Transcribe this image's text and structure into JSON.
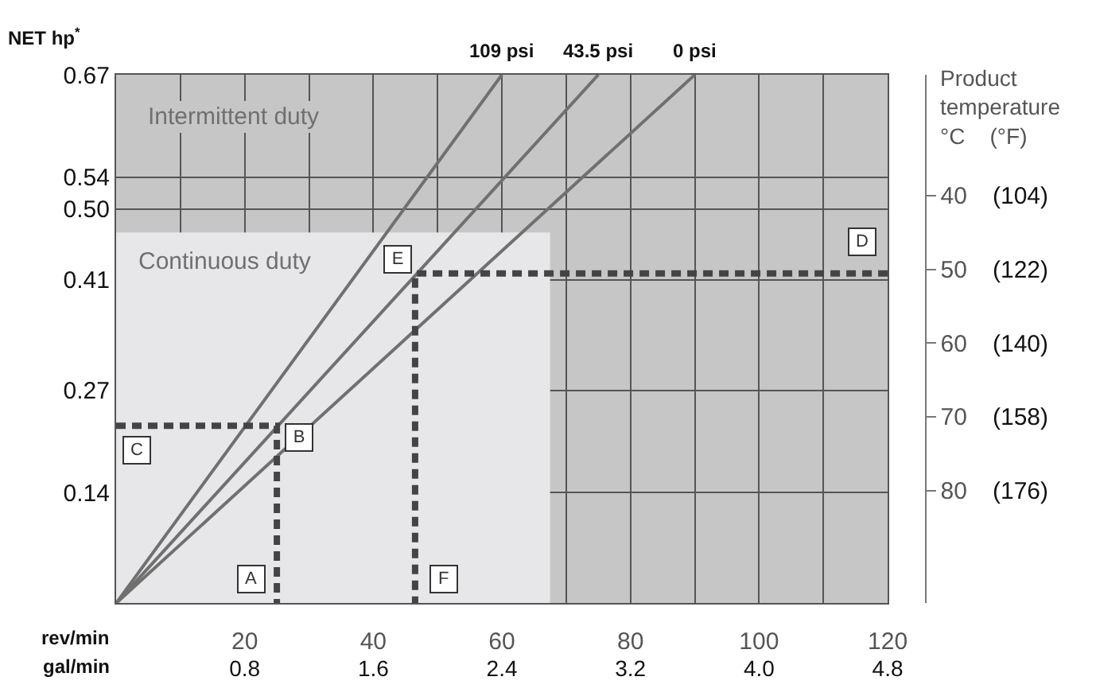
{
  "chart_data": {
    "type": "line",
    "ylabel": "NET hp$^{*}$",
    "xlabel": "rev/min",
    "x2label": "gal/min",
    "y2label": "Product\ntemperature\n°C    (°F)",
    "xlim": [
      0,
      120
    ],
    "xticks": [
      20,
      40,
      60,
      80,
      100,
      120
    ],
    "x2lim": [
      0,
      4.8
    ],
    "x2ticks": [
      0.8,
      1.6,
      2.4,
      3.2,
      {
        "value": 4,
        "label": "4.0"
      },
      4.8
    ],
    "ylim": [
      0,
      0.67
    ],
    "yticks": [
      0.14,
      0.27,
      0.41,
      {
        "value": 0.5,
        "label": "0.50"
      },
      0.54,
      0.67
    ],
    "y2lim": [
      95.3,
      23.6
    ],
    "y2ticks": [
      40,
      50,
      60,
      70,
      80
    ],
    "y3lim": [
      203.54,
      74.48
    ],
    "y3ticks": [
      {
        "value": 104,
        "label": "(104)"
      },
      {
        "value": 122,
        "label": "(122)"
      },
      {
        "value": 140,
        "label": "(140)"
      },
      {
        "value": 158,
        "label": "(158)"
      },
      {
        "value": 176,
        "label": "(176)"
      }
    ],
    "bands": [
      {
        "axis": "y",
        "from": 0,
        "to": 0.67,
        "label": "Intermittent duty",
        "color": "#c6c6c6"
      }
    ],
    "series": [
      {
        "type": "area",
        "name": "Continuous duty",
        "color": "#e7e7e9",
        "x": [
          0,
          67.5
        ],
        "values": [
          0.47,
          0.47
        ]
      },
      {
        "name": "109 psi",
        "color": "#707070",
        "x": [
          0,
          60
        ],
        "values": [
          0,
          0.67
        ]
      },
      {
        "name": "43.5 psi",
        "color": "#707070",
        "x": [
          0,
          75
        ],
        "values": [
          0,
          0.67
        ]
      },
      {
        "name": "0 psi",
        "color": "#707070",
        "x": [
          0,
          90
        ],
        "values": [
          0,
          0.67
        ]
      },
      {
        "line_style": "dashed",
        "color": "#444444",
        "x": [
          0,
          25,
          25
        ],
        "values": [
          0.225,
          0.225,
          0
        ]
      },
      {
        "line_style": "dashed",
        "color": "#444444",
        "x": [
          120,
          46.5,
          46.5
        ],
        "values": [
          0.418,
          0.418,
          0
        ]
      }
    ],
    "annotations": [
      {
        "text": "A",
        "x": 21,
        "y": 0.03
      },
      {
        "text": "B",
        "x": 28.4,
        "y": 0.21
      },
      {
        "text": "C",
        "x": 3.2,
        "y": 0.193
      },
      {
        "text": "D",
        "x": 116,
        "y": 0.458
      },
      {
        "text": "E",
        "x": 43.8,
        "y": 0.436
      },
      {
        "text": "F",
        "x": 51,
        "y": 0.03
      }
    ],
    "grid": true,
    "legend": false,
    "marker": "none"
  }
}
